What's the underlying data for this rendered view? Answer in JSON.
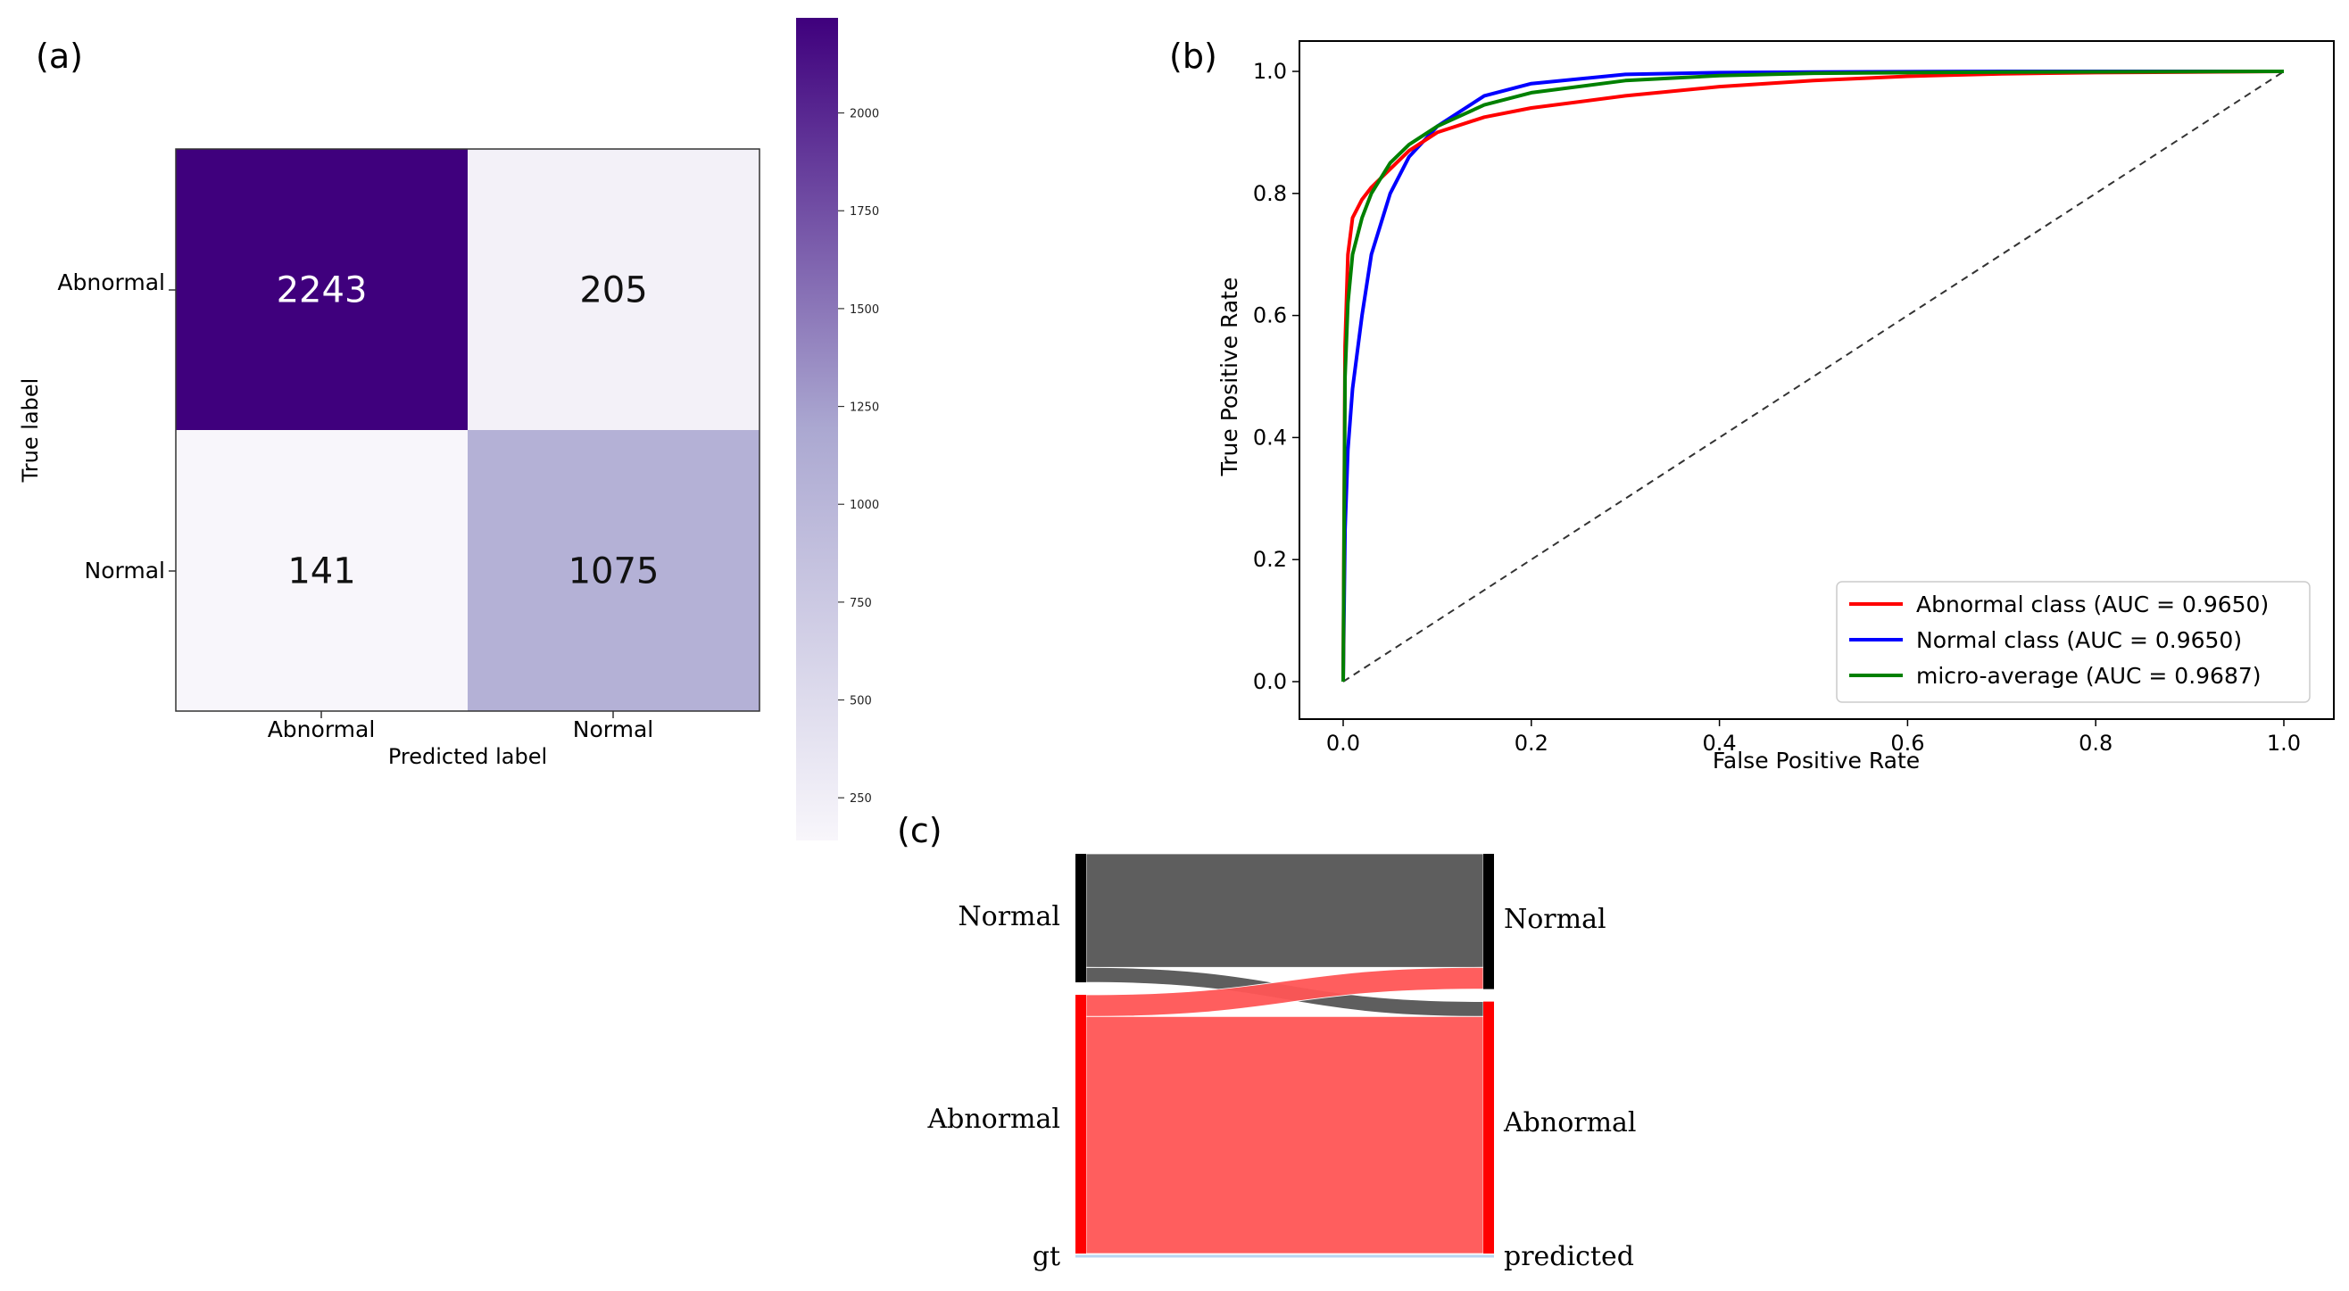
{
  "panels": {
    "a": {
      "tag": "(a)",
      "chart_type": "heatmap",
      "xlabel": "Predicted label",
      "ylabel": "True label",
      "row_labels": [
        "Abnormal",
        "Normal"
      ],
      "col_labels": [
        "Abnormal",
        "Normal"
      ],
      "matrix": [
        [
          2243,
          205
        ],
        [
          141,
          1075
        ]
      ],
      "colorbar": {
        "min": 141,
        "max": 2243,
        "ticks": [
          250,
          500,
          750,
          1000,
          1250,
          1500,
          1750,
          2000
        ]
      },
      "colors": {
        "low": "#f8f6fb",
        "high": "#3f007d"
      }
    },
    "b": {
      "tag": "(b)",
      "chart_type": "line",
      "xlabel": "False Positive Rate",
      "ylabel": "True Positive Rate",
      "xlim": [
        0,
        1
      ],
      "ylim": [
        0,
        1
      ],
      "xticks": [
        "0.0",
        "0.2",
        "0.4",
        "0.6",
        "0.8",
        "1.0"
      ],
      "yticks": [
        "0.0",
        "0.2",
        "0.4",
        "0.6",
        "0.8",
        "1.0"
      ],
      "legend_position": "bottom-right",
      "series": [
        {
          "name": "Abnormal class (AUC = 0.9650)",
          "color": "#ff0000",
          "x": [
            0,
            0.002,
            0.005,
            0.01,
            0.02,
            0.03,
            0.05,
            0.07,
            0.1,
            0.15,
            0.2,
            0.3,
            0.4,
            0.5,
            0.6,
            0.7,
            0.8,
            0.9,
            1.0
          ],
          "y": [
            0,
            0.55,
            0.7,
            0.76,
            0.79,
            0.81,
            0.84,
            0.87,
            0.9,
            0.925,
            0.94,
            0.96,
            0.975,
            0.985,
            0.992,
            0.996,
            0.998,
            0.999,
            1.0
          ]
        },
        {
          "name": "Normal class (AUC = 0.9650)",
          "color": "#0000ff",
          "x": [
            0,
            0.002,
            0.005,
            0.01,
            0.02,
            0.03,
            0.05,
            0.07,
            0.1,
            0.15,
            0.2,
            0.3,
            0.4,
            0.5,
            0.7,
            1.0
          ],
          "y": [
            0,
            0.25,
            0.38,
            0.48,
            0.6,
            0.7,
            0.8,
            0.86,
            0.91,
            0.96,
            0.98,
            0.995,
            0.998,
            0.999,
            1.0,
            1.0
          ]
        },
        {
          "name": "micro-average (AUC = 0.9687)",
          "color": "#008000",
          "x": [
            0,
            0.002,
            0.005,
            0.01,
            0.02,
            0.03,
            0.05,
            0.07,
            0.1,
            0.15,
            0.2,
            0.3,
            0.4,
            0.5,
            0.7,
            1.0
          ],
          "y": [
            0,
            0.5,
            0.62,
            0.7,
            0.76,
            0.8,
            0.85,
            0.88,
            0.91,
            0.945,
            0.965,
            0.985,
            0.993,
            0.997,
            0.999,
            1.0
          ]
        },
        {
          "name": "chance",
          "color": "#333333",
          "dashed": true,
          "in_legend": false,
          "x": [
            0,
            1
          ],
          "y": [
            0,
            1
          ]
        }
      ]
    },
    "c": {
      "tag": "(c)",
      "chart_type": "sankey",
      "left_axis_label": "gt",
      "right_axis_label": "predicted",
      "left_nodes": [
        {
          "label": "Normal",
          "count": 1216,
          "color": "#000000"
        },
        {
          "label": "Abnormal",
          "count": 2448,
          "color": "#ff0000"
        }
      ],
      "right_nodes": [
        {
          "label": "Normal",
          "count": 1280,
          "color": "#000000"
        },
        {
          "label": "Abnormal",
          "count": 2384,
          "color": "#ff0000"
        }
      ],
      "flows": [
        {
          "from": "Normal",
          "to": "Normal",
          "value": 1075,
          "color": "#555555"
        },
        {
          "from": "Normal",
          "to": "Abnormal",
          "value": 141,
          "color": "#555555"
        },
        {
          "from": "Abnormal",
          "to": "Normal",
          "value": 205,
          "color": "#ff5555"
        },
        {
          "from": "Abnormal",
          "to": "Abnormal",
          "value": 2243,
          "color": "#ff5555"
        }
      ]
    }
  }
}
